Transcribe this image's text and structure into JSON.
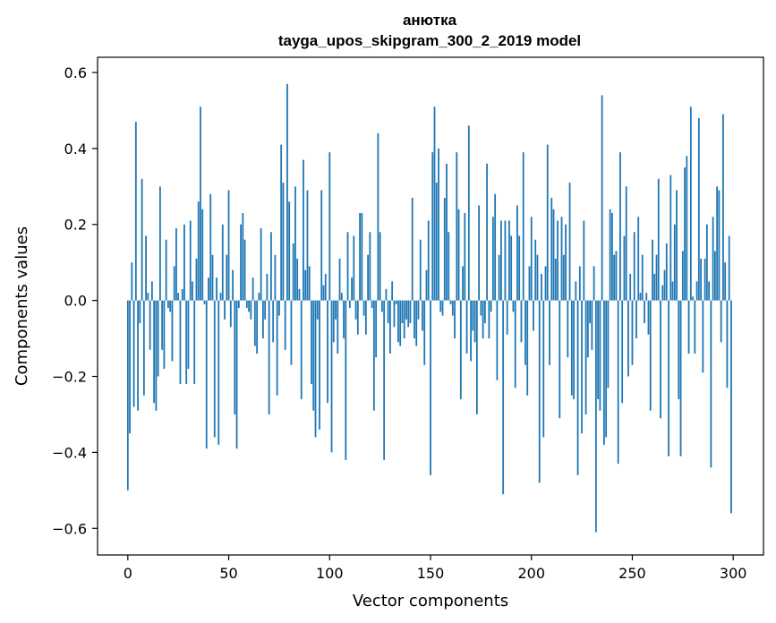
{
  "chart_data": {
    "type": "bar",
    "title_line1": "анютка",
    "title_line2": "tayga_upos_skipgram_300_2_2019 model",
    "xlabel": "Vector components",
    "ylabel": "Components values",
    "xlim": [
      -15,
      315
    ],
    "ylim": [
      -0.67,
      0.64
    ],
    "xticks": [
      0,
      50,
      100,
      150,
      200,
      250,
      300
    ],
    "xtick_labels": [
      "0",
      "50",
      "100",
      "150",
      "200",
      "250",
      "300"
    ],
    "yticks": [
      -0.6,
      -0.4,
      -0.2,
      0.0,
      0.2,
      0.4,
      0.6
    ],
    "ytick_labels": [
      "−0.6",
      "−0.4",
      "−0.2",
      "0.0",
      "0.2",
      "0.4",
      "0.6"
    ],
    "bar_color": "#1f77b4",
    "values": [
      -0.5,
      -0.35,
      0.1,
      -0.28,
      0.47,
      -0.29,
      -0.06,
      0.32,
      -0.25,
      0.17,
      0.02,
      -0.13,
      0.05,
      -0.27,
      -0.29,
      -0.2,
      0.3,
      -0.13,
      -0.18,
      0.16,
      -0.02,
      -0.03,
      -0.16,
      0.09,
      0.19,
      0.02,
      -0.22,
      0.03,
      0.2,
      -0.22,
      -0.18,
      0.21,
      0.05,
      -0.22,
      0.11,
      0.26,
      0.51,
      0.24,
      -0.01,
      -0.39,
      0.06,
      0.28,
      0.12,
      -0.36,
      0.06,
      -0.38,
      0.02,
      0.2,
      -0.05,
      0.12,
      0.29,
      -0.07,
      0.08,
      -0.3,
      -0.39,
      -0.02,
      0.2,
      0.23,
      0.16,
      -0.02,
      -0.03,
      -0.05,
      0.06,
      -0.12,
      -0.14,
      0.02,
      0.19,
      -0.1,
      -0.05,
      0.07,
      -0.3,
      0.18,
      -0.11,
      0.12,
      -0.25,
      -0.04,
      0.41,
      0.31,
      -0.13,
      0.57,
      0.26,
      -0.17,
      0.15,
      0.3,
      0.11,
      0.03,
      -0.26,
      0.37,
      0.08,
      0.29,
      0.09,
      -0.22,
      -0.29,
      -0.36,
      -0.05,
      -0.34,
      0.29,
      0.04,
      0.07,
      -0.27,
      0.39,
      -0.4,
      -0.11,
      -0.05,
      -0.14,
      0.11,
      0.02,
      -0.1,
      -0.42,
      0.18,
      -0.02,
      0.06,
      0.17,
      -0.05,
      -0.09,
      0.23,
      0.23,
      -0.04,
      -0.09,
      0.12,
      0.18,
      -0.02,
      -0.29,
      -0.15,
      0.44,
      0.18,
      -0.03,
      -0.42,
      0.03,
      -0.06,
      -0.14,
      0.05,
      -0.07,
      -0.01,
      -0.11,
      -0.12,
      -0.06,
      -0.1,
      -0.05,
      -0.07,
      -0.06,
      0.27,
      -0.1,
      -0.12,
      -0.05,
      0.16,
      -0.08,
      -0.17,
      0.08,
      0.21,
      -0.46,
      0.39,
      0.51,
      0.31,
      0.4,
      -0.03,
      -0.04,
      0.27,
      0.36,
      0.18,
      -0.01,
      -0.04,
      -0.1,
      0.39,
      0.24,
      -0.26,
      0.09,
      0.23,
      -0.14,
      0.46,
      -0.16,
      -0.08,
      -0.11,
      -0.3,
      0.25,
      -0.04,
      -0.1,
      -0.06,
      0.36,
      -0.1,
      -0.03,
      0.22,
      0.28,
      -0.21,
      0.12,
      0.21,
      -0.51,
      0.21,
      -0.09,
      0.21,
      0.17,
      -0.03,
      -0.23,
      0.25,
      0.17,
      -0.11,
      0.39,
      -0.17,
      -0.25,
      0.09,
      0.22,
      -0.08,
      0.16,
      0.12,
      -0.48,
      0.07,
      -0.36,
      0.09,
      0.41,
      -0.17,
      0.27,
      0.24,
      0.11,
      0.21,
      -0.31,
      0.22,
      0.12,
      0.2,
      -0.15,
      0.31,
      -0.25,
      -0.26,
      0.05,
      -0.46,
      0.09,
      -0.35,
      0.21,
      -0.3,
      -0.15,
      -0.06,
      -0.13,
      0.09,
      -0.61,
      -0.26,
      -0.29,
      0.54,
      -0.38,
      -0.36,
      -0.23,
      0.24,
      0.23,
      0.12,
      0.13,
      -0.43,
      0.39,
      -0.27,
      0.17,
      0.3,
      -0.2,
      0.07,
      -0.17,
      0.18,
      -0.1,
      0.22,
      0.02,
      0.12,
      -0.06,
      0.02,
      -0.09,
      -0.29,
      0.16,
      0.07,
      0.12,
      0.32,
      -0.31,
      0.04,
      0.08,
      0.15,
      -0.41,
      0.33,
      0.05,
      0.2,
      0.29,
      -0.26,
      -0.41,
      0.13,
      0.35,
      0.38,
      -0.14,
      0.51,
      0.01,
      -0.14,
      0.05,
      0.48,
      0.11,
      -0.19,
      0.11,
      0.2,
      0.05,
      -0.44,
      0.22,
      0.13,
      0.3,
      0.29,
      -0.11,
      0.49,
      0.1,
      -0.23,
      0.17,
      -0.56
    ]
  }
}
